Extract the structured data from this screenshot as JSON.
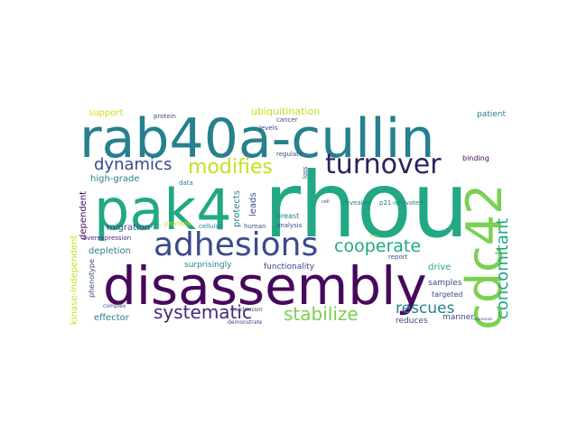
{
  "title": "word cloud",
  "palette": {
    "dark_purple": "#46085c",
    "indigo": "#3b4a8a",
    "blue": "#2f6a8e",
    "teal": "#27808e",
    "green": "#22a884",
    "lime": "#7ad151",
    "yellow": "#c8e020",
    "purple": "#482878"
  },
  "words": {
    "rhou": "rhou",
    "rab40a_cullin": "rab40a-cullin",
    "disassembly": "disassembly",
    "pak4": "pak4",
    "cdc42": "cdc42",
    "adhesions": "adhesions",
    "turnover": "turnover",
    "modifies": "modifies",
    "dynamics": "dynamics",
    "cooperate": "cooperate",
    "concomitant": "concomitant",
    "systematic": "systematic",
    "stabilize": "stabilize",
    "rescues": "rescues",
    "ubiquitination": "ubiquitination",
    "support": "support",
    "protein": "protein",
    "cancer": "cancer",
    "levels": "levels",
    "patient": "patient",
    "regulate": "regulate",
    "binding": "binding",
    "high_grade": "high-grade",
    "data": "data",
    "loss": "loss",
    "revealed": "revealed",
    "p21_activated": "p21-activated",
    "cell": "cell",
    "protects": "protects",
    "leads": "leads",
    "dependent": "dependent",
    "breast": "breast",
    "analysis": "analysis",
    "migration": "migration",
    "promote": "promote",
    "cellular": "cellular",
    "human": "human",
    "depletion": "depletion",
    "overexpression": "overexpression",
    "kinase_independent": "kinase-independent",
    "phenotype": "phenotype",
    "surprisingly": "surprisingly",
    "functionality": "functionality",
    "report": "report",
    "role": "role",
    "drive": "drive",
    "samples": "samples",
    "targeted": "targeted",
    "effector": "effector",
    "complex": "complex",
    "mechanism": "mechanism",
    "reduces": "reduces",
    "manner": "manner",
    "expression": "expression",
    "demonstrate": "demonstrate"
  }
}
